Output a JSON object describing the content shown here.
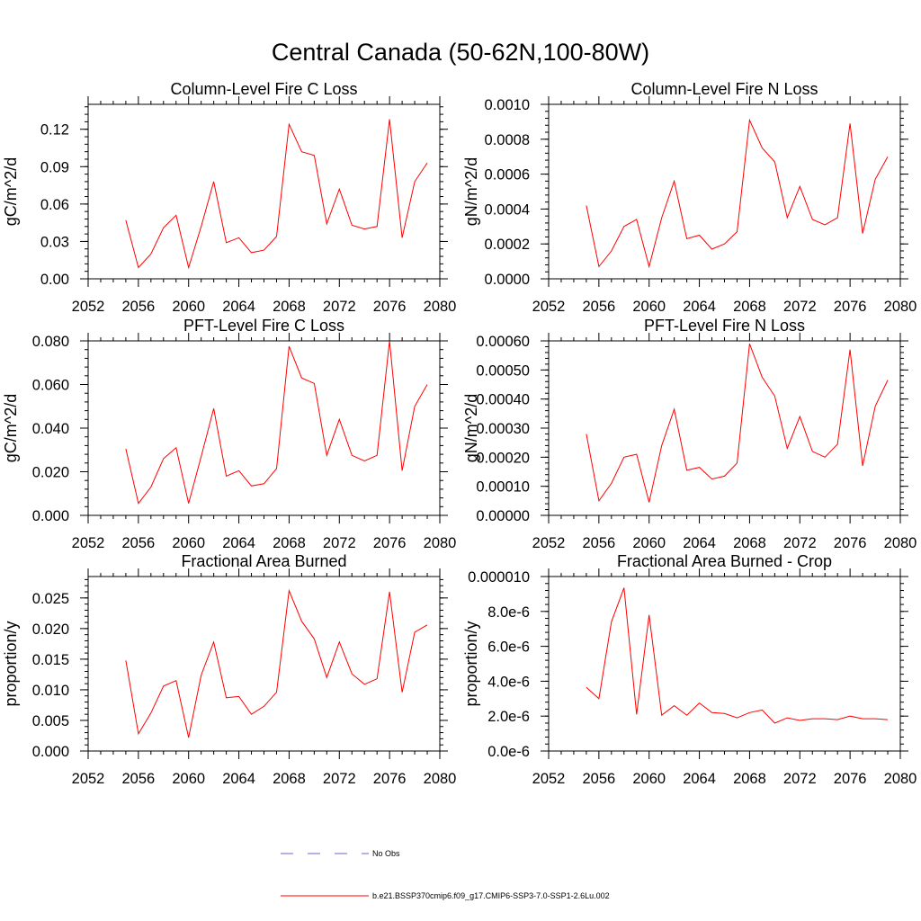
{
  "title": "Central Canada (50-62N,100-80W)",
  "colors": {
    "model": "#ff0000",
    "obs": "#6666cc"
  },
  "legend": [
    {
      "label": "No Obs",
      "style": "dashed",
      "color": "#6666cc"
    },
    {
      "label": "b.e21.BSSP370cmip6.f09_g17.CMIP6-SSP3-7.0-SSP1-2.6Lu.002",
      "style": "solid",
      "color": "#ff0000"
    }
  ],
  "chart_data": [
    {
      "type": "line",
      "title": "Column-Level Fire C Loss",
      "ylabel": "gC/m^2/d",
      "xlim": [
        2052,
        2080
      ],
      "xticks": [
        "2052",
        "2056",
        "2060",
        "2064",
        "2068",
        "2072",
        "2076",
        "2080"
      ],
      "ylim": [
        0,
        0.14
      ],
      "yticks": [
        {
          "v": 0,
          "t": "0.00"
        },
        {
          "v": 0.03,
          "t": "0.03"
        },
        {
          "v": 0.06,
          "t": "0.06"
        },
        {
          "v": 0.09,
          "t": "0.09"
        },
        {
          "v": 0.12,
          "t": "0.12"
        }
      ],
      "minor_step": 0.006,
      "x": [
        2055,
        2056,
        2057,
        2058,
        2059,
        2060,
        2061,
        2062,
        2063,
        2064,
        2065,
        2066,
        2067,
        2068,
        2069,
        2070,
        2071,
        2072,
        2073,
        2074,
        2075,
        2076,
        2077,
        2078,
        2079
      ],
      "series": [
        {
          "values": [
            0.047,
            0.009,
            0.02,
            0.041,
            0.051,
            0.009,
            0.042,
            0.078,
            0.029,
            0.033,
            0.021,
            0.023,
            0.034,
            0.124,
            0.102,
            0.099,
            0.044,
            0.072,
            0.043,
            0.04,
            0.042,
            0.128,
            0.033,
            0.078,
            0.093
          ]
        }
      ]
    },
    {
      "type": "line",
      "title": "Column-Level Fire N Loss",
      "ylabel": "gN/m^2/d",
      "xlim": [
        2052,
        2080
      ],
      "xticks": [
        "2052",
        "2056",
        "2060",
        "2064",
        "2068",
        "2072",
        "2076",
        "2080"
      ],
      "ylim": [
        0,
        0.001
      ],
      "yticks": [
        {
          "v": 0,
          "t": "0.0000"
        },
        {
          "v": 0.0002,
          "t": "0.0002"
        },
        {
          "v": 0.0004,
          "t": "0.0004"
        },
        {
          "v": 0.0006,
          "t": "0.0006"
        },
        {
          "v": 0.0008,
          "t": "0.0008"
        },
        {
          "v": 0.001,
          "t": "0.0010"
        }
      ],
      "minor_step": 4e-05,
      "x": [
        2055,
        2056,
        2057,
        2058,
        2059,
        2060,
        2061,
        2062,
        2063,
        2064,
        2065,
        2066,
        2067,
        2068,
        2069,
        2070,
        2071,
        2072,
        2073,
        2074,
        2075,
        2076,
        2077,
        2078,
        2079
      ],
      "series": [
        {
          "values": [
            0.00042,
            7e-05,
            0.00016,
            0.0003,
            0.00034,
            7e-05,
            0.00035,
            0.00056,
            0.00023,
            0.00025,
            0.00017,
            0.0002,
            0.00027,
            0.00091,
            0.00075,
            0.00067,
            0.00035,
            0.00053,
            0.00034,
            0.00031,
            0.00035,
            0.00089,
            0.00026,
            0.00057,
            0.0007
          ]
        }
      ]
    },
    {
      "type": "line",
      "title": "PFT-Level Fire C Loss",
      "ylabel": "gC/m^2/d",
      "xlim": [
        2052,
        2080
      ],
      "xticks": [
        "2052",
        "2056",
        "2060",
        "2064",
        "2068",
        "2072",
        "2076",
        "2080"
      ],
      "ylim": [
        0,
        0.08
      ],
      "yticks": [
        {
          "v": 0,
          "t": "0.000"
        },
        {
          "v": 0.02,
          "t": "0.020"
        },
        {
          "v": 0.04,
          "t": "0.040"
        },
        {
          "v": 0.06,
          "t": "0.060"
        },
        {
          "v": 0.08,
          "t": "0.080"
        }
      ],
      "minor_step": 0.004,
      "x": [
        2055,
        2056,
        2057,
        2058,
        2059,
        2060,
        2061,
        2062,
        2063,
        2064,
        2065,
        2066,
        2067,
        2068,
        2069,
        2070,
        2071,
        2072,
        2073,
        2074,
        2075,
        2076,
        2077,
        2078,
        2079
      ],
      "series": [
        {
          "values": [
            0.0305,
            0.0055,
            0.013,
            0.026,
            0.031,
            0.0055,
            0.027,
            0.049,
            0.018,
            0.0205,
            0.0135,
            0.0145,
            0.0215,
            0.0775,
            0.063,
            0.0605,
            0.0275,
            0.044,
            0.0275,
            0.025,
            0.0275,
            0.08,
            0.0205,
            0.05,
            0.06
          ]
        }
      ]
    },
    {
      "type": "line",
      "title": "PFT-Level Fire N Loss",
      "ylabel": "gN/m^2/d",
      "xlim": [
        2052,
        2080
      ],
      "xticks": [
        "2052",
        "2056",
        "2060",
        "2064",
        "2068",
        "2072",
        "2076",
        "2080"
      ],
      "ylim": [
        0,
        0.0006
      ],
      "yticks": [
        {
          "v": 0,
          "t": "0.00000"
        },
        {
          "v": 0.0001,
          "t": "0.00010"
        },
        {
          "v": 0.0002,
          "t": "0.00020"
        },
        {
          "v": 0.0003,
          "t": "0.00030"
        },
        {
          "v": 0.0004,
          "t": "0.00040"
        },
        {
          "v": 0.0005,
          "t": "0.00050"
        },
        {
          "v": 0.0006,
          "t": "0.00060"
        }
      ],
      "minor_step": 2e-05,
      "x": [
        2055,
        2056,
        2057,
        2058,
        2059,
        2060,
        2061,
        2062,
        2063,
        2064,
        2065,
        2066,
        2067,
        2068,
        2069,
        2070,
        2071,
        2072,
        2073,
        2074,
        2075,
        2076,
        2077,
        2078,
        2079
      ],
      "series": [
        {
          "values": [
            0.00028,
            5e-05,
            0.00011,
            0.0002,
            0.00021,
            4.5e-05,
            0.00024,
            0.000365,
            0.000155,
            0.000165,
            0.000125,
            0.000135,
            0.00018,
            0.00059,
            0.000475,
            0.00041,
            0.00023,
            0.00034,
            0.00022,
            0.0002,
            0.000245,
            0.00057,
            0.00017,
            0.000375,
            0.000465
          ]
        }
      ]
    },
    {
      "type": "line",
      "title": "Fractional Area Burned",
      "ylabel": "proportion/y",
      "xlim": [
        2052,
        2080
      ],
      "xticks": [
        "2052",
        "2056",
        "2060",
        "2064",
        "2068",
        "2072",
        "2076",
        "2080"
      ],
      "ylim": [
        0,
        0.0285
      ],
      "yticks": [
        {
          "v": 0,
          "t": "0.000"
        },
        {
          "v": 0.005,
          "t": "0.005"
        },
        {
          "v": 0.01,
          "t": "0.010"
        },
        {
          "v": 0.015,
          "t": "0.015"
        },
        {
          "v": 0.02,
          "t": "0.020"
        },
        {
          "v": 0.025,
          "t": "0.025"
        }
      ],
      "minor_step": 0.001,
      "x": [
        2055,
        2056,
        2057,
        2058,
        2059,
        2060,
        2061,
        2062,
        2063,
        2064,
        2065,
        2066,
        2067,
        2068,
        2069,
        2070,
        2071,
        2072,
        2073,
        2074,
        2075,
        2076,
        2077,
        2078,
        2079
      ],
      "series": [
        {
          "values": [
            0.0148,
            0.0028,
            0.0062,
            0.0106,
            0.0115,
            0.0022,
            0.0124,
            0.0178,
            0.0087,
            0.0089,
            0.006,
            0.0073,
            0.0096,
            0.0262,
            0.0212,
            0.0183,
            0.012,
            0.0178,
            0.0126,
            0.0109,
            0.0118,
            0.026,
            0.0096,
            0.0194,
            0.0206
          ]
        }
      ]
    },
    {
      "type": "line",
      "title": "Fractional Area Burned - Crop",
      "ylabel": "proportion/y",
      "xlim": [
        2052,
        2080
      ],
      "xticks": [
        "2052",
        "2056",
        "2060",
        "2064",
        "2068",
        "2072",
        "2076",
        "2080"
      ],
      "ylim": [
        0,
        1e-05
      ],
      "yticks": [
        {
          "v": 0,
          "t": "0.0e-6"
        },
        {
          "v": 2e-06,
          "t": "2.0e-6"
        },
        {
          "v": 4e-06,
          "t": "4.0e-6"
        },
        {
          "v": 6e-06,
          "t": "6.0e-6"
        },
        {
          "v": 8e-06,
          "t": "8.0e-6"
        },
        {
          "v": 1e-05,
          "t": "0.000010"
        }
      ],
      "minor_step": 4e-07,
      "x": [
        2055,
        2056,
        2057,
        2058,
        2059,
        2060,
        2061,
        2062,
        2063,
        2064,
        2065,
        2066,
        2067,
        2068,
        2069,
        2070,
        2071,
        2072,
        2073,
        2074,
        2075,
        2076,
        2077,
        2078,
        2079
      ],
      "series": [
        {
          "values": [
            3.65e-06,
            3e-06,
            7.4e-06,
            9.35e-06,
            2.1e-06,
            7.8e-06,
            2.05e-06,
            2.6e-06,
            2.05e-06,
            2.75e-06,
            2.2e-06,
            2.15e-06,
            1.9e-06,
            2.2e-06,
            2.35e-06,
            1.6e-06,
            1.9e-06,
            1.75e-06,
            1.85e-06,
            1.85e-06,
            1.8e-06,
            2e-06,
            1.85e-06,
            1.85e-06,
            1.8e-06
          ]
        }
      ]
    }
  ]
}
